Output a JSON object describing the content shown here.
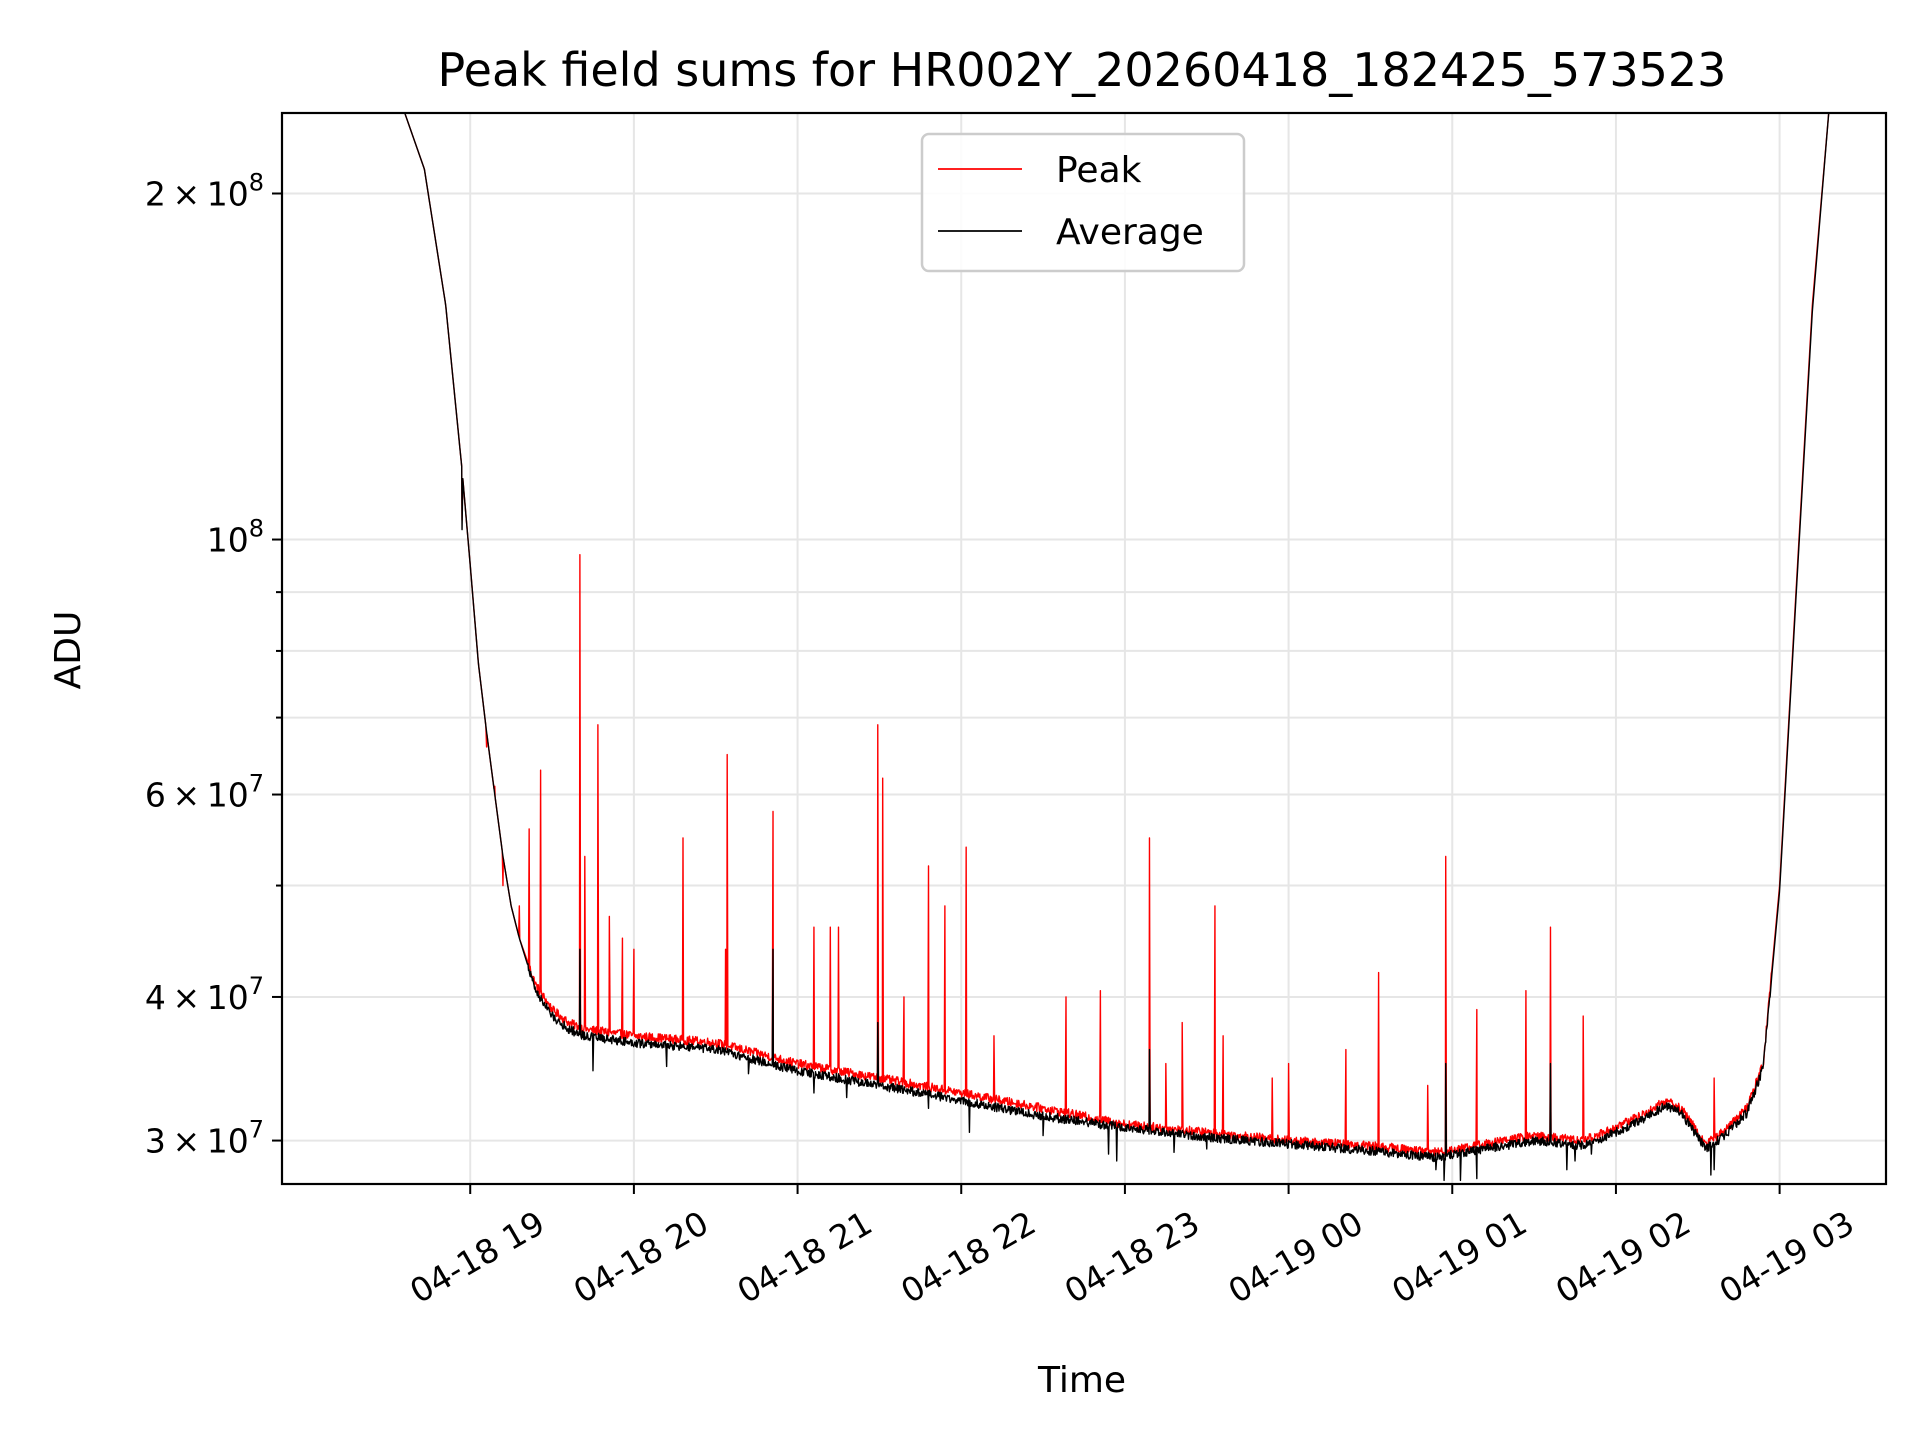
{
  "chart_data": {
    "type": "line",
    "title": "Peak field sums for HR002Y_20260418_182425_573523",
    "xlabel": "Time",
    "ylabel": "ADU",
    "yscale": "log",
    "grid": true,
    "legend_position": "top-center",
    "x_unit": "hours since 04-18 19:00",
    "xlim": [
      -1.15,
      8.65
    ],
    "ylim": [
      27500000,
      235000000
    ],
    "x_ticks": [
      {
        "value": 0,
        "label": "04-18 19"
      },
      {
        "value": 1,
        "label": "04-18 20"
      },
      {
        "value": 2,
        "label": "04-18 21"
      },
      {
        "value": 3,
        "label": "04-18 22"
      },
      {
        "value": 4,
        "label": "04-18 23"
      },
      {
        "value": 5,
        "label": "04-19 00"
      },
      {
        "value": 6,
        "label": "04-19 01"
      },
      {
        "value": 7,
        "label": "04-19 02"
      },
      {
        "value": 8,
        "label": "04-19 03"
      }
    ],
    "y_ticks": [
      {
        "value": 30000000,
        "mantissa": "3",
        "exponent": "7"
      },
      {
        "value": 40000000,
        "mantissa": "4",
        "exponent": "7"
      },
      {
        "value": 60000000,
        "mantissa": "6",
        "exponent": "7"
      },
      {
        "value": 100000000,
        "mantissa": "",
        "exponent": "8"
      },
      {
        "value": 200000000,
        "mantissa": "2",
        "exponent": "8"
      }
    ],
    "y_minor_ticks": [
      50000000,
      70000000,
      80000000,
      90000000
    ],
    "series": [
      {
        "name": "Peak",
        "color": "#ff0000",
        "baseline": [
          [
            -0.4,
            235000000
          ],
          [
            -0.28,
            210000000
          ],
          [
            -0.15,
            160000000
          ],
          [
            -0.05,
            115000000
          ],
          [
            0.0,
            95000000
          ],
          [
            0.05,
            78000000
          ],
          [
            0.1,
            68000000
          ],
          [
            0.15,
            60000000
          ],
          [
            0.2,
            53000000
          ],
          [
            0.25,
            48000000
          ],
          [
            0.3,
            45000000
          ],
          [
            0.4,
            41000000
          ],
          [
            0.5,
            39000000
          ],
          [
            0.6,
            38000000
          ],
          [
            0.7,
            37500000
          ],
          [
            1.0,
            37000000
          ],
          [
            1.5,
            36500000
          ],
          [
            2.0,
            35000000
          ],
          [
            2.5,
            34000000
          ],
          [
            3.0,
            33000000
          ],
          [
            3.5,
            32000000
          ],
          [
            4.0,
            31000000
          ],
          [
            4.5,
            30500000
          ],
          [
            5.0,
            30000000
          ],
          [
            5.5,
            29700000
          ],
          [
            5.9,
            29300000
          ],
          [
            6.2,
            29800000
          ],
          [
            6.5,
            30300000
          ],
          [
            6.8,
            30000000
          ],
          [
            7.0,
            30800000
          ],
          [
            7.2,
            31800000
          ],
          [
            7.3,
            32500000
          ],
          [
            7.4,
            32000000
          ],
          [
            7.5,
            30500000
          ],
          [
            7.55,
            29800000
          ],
          [
            7.65,
            30500000
          ],
          [
            7.8,
            32000000
          ],
          [
            7.9,
            35000000
          ],
          [
            8.0,
            50000000
          ],
          [
            8.1,
            90000000
          ],
          [
            8.2,
            160000000
          ],
          [
            8.3,
            235000000
          ]
        ],
        "spikes": [
          [
            -0.05,
            104000000
          ],
          [
            0.1,
            66000000
          ],
          [
            0.15,
            61000000
          ],
          [
            0.2,
            50000000
          ],
          [
            0.3,
            48000000
          ],
          [
            0.36,
            56000000
          ],
          [
            0.43,
            63000000
          ],
          [
            0.67,
            97000000
          ],
          [
            0.7,
            53000000
          ],
          [
            0.78,
            69000000
          ],
          [
            0.85,
            47000000
          ],
          [
            0.93,
            45000000
          ],
          [
            1.0,
            44000000
          ],
          [
            1.3,
            55000000
          ],
          [
            1.56,
            44000000
          ],
          [
            1.57,
            65000000
          ],
          [
            1.85,
            58000000
          ],
          [
            2.1,
            46000000
          ],
          [
            2.2,
            46000000
          ],
          [
            2.25,
            46000000
          ],
          [
            2.49,
            69000000
          ],
          [
            2.52,
            62000000
          ],
          [
            2.65,
            40000000
          ],
          [
            2.8,
            52000000
          ],
          [
            2.9,
            48000000
          ],
          [
            3.03,
            54000000
          ],
          [
            3.2,
            37000000
          ],
          [
            3.64,
            40000000
          ],
          [
            3.85,
            40500000
          ],
          [
            4.15,
            55000000
          ],
          [
            4.25,
            35000000
          ],
          [
            4.35,
            38000000
          ],
          [
            4.55,
            48000000
          ],
          [
            4.6,
            37000000
          ],
          [
            4.9,
            34000000
          ],
          [
            5.0,
            35000000
          ],
          [
            5.35,
            36000000
          ],
          [
            5.55,
            42000000
          ],
          [
            5.85,
            33500000
          ],
          [
            5.96,
            53000000
          ],
          [
            6.15,
            39000000
          ],
          [
            6.45,
            40500000
          ],
          [
            6.6,
            46000000
          ],
          [
            6.8,
            38500000
          ],
          [
            7.6,
            34000000
          ]
        ],
        "dips": []
      },
      {
        "name": "Average",
        "color": "#000000",
        "baseline": [
          [
            -0.4,
            235000000
          ],
          [
            -0.28,
            210000000
          ],
          [
            -0.15,
            160000000
          ],
          [
            -0.05,
            115000000
          ],
          [
            0.0,
            95000000
          ],
          [
            0.05,
            78000000
          ],
          [
            0.1,
            68000000
          ],
          [
            0.15,
            60000000
          ],
          [
            0.2,
            53000000
          ],
          [
            0.25,
            48000000
          ],
          [
            0.3,
            45000000
          ],
          [
            0.4,
            40500000
          ],
          [
            0.5,
            38500000
          ],
          [
            0.6,
            37500000
          ],
          [
            0.7,
            37000000
          ],
          [
            1.0,
            36500000
          ],
          [
            1.5,
            36000000
          ],
          [
            2.0,
            34500000
          ],
          [
            2.5,
            33500000
          ],
          [
            3.0,
            32500000
          ],
          [
            3.5,
            31500000
          ],
          [
            4.0,
            30800000
          ],
          [
            4.5,
            30200000
          ],
          [
            5.0,
            29800000
          ],
          [
            5.5,
            29400000
          ],
          [
            5.9,
            29000000
          ],
          [
            6.2,
            29500000
          ],
          [
            6.5,
            30000000
          ],
          [
            6.8,
            29700000
          ],
          [
            7.0,
            30500000
          ],
          [
            7.2,
            31500000
          ],
          [
            7.3,
            32200000
          ],
          [
            7.4,
            31700000
          ],
          [
            7.5,
            30200000
          ],
          [
            7.55,
            29500000
          ],
          [
            7.65,
            30200000
          ],
          [
            7.8,
            31700000
          ],
          [
            7.9,
            34700000
          ],
          [
            8.0,
            49500000
          ],
          [
            8.1,
            89000000
          ],
          [
            8.2,
            158000000
          ],
          [
            8.3,
            235000000
          ]
        ],
        "spikes": [
          [
            -0.05,
            102000000
          ],
          [
            0.67,
            44000000
          ],
          [
            1.85,
            44000000
          ],
          [
            2.49,
            38000000
          ],
          [
            4.15,
            36000000
          ],
          [
            5.96,
            35000000
          ],
          [
            6.6,
            35000000
          ]
        ],
        "dips": [
          [
            0.75,
            34500000
          ],
          [
            1.2,
            34800000
          ],
          [
            1.7,
            34300000
          ],
          [
            2.1,
            33000000
          ],
          [
            2.3,
            32700000
          ],
          [
            2.8,
            32000000
          ],
          [
            3.05,
            30500000
          ],
          [
            3.5,
            30300000
          ],
          [
            3.9,
            29200000
          ],
          [
            3.95,
            28800000
          ],
          [
            4.3,
            29300000
          ],
          [
            4.5,
            29500000
          ],
          [
            4.7,
            29800000
          ],
          [
            5.9,
            28300000
          ],
          [
            5.95,
            27700000
          ],
          [
            6.05,
            27700000
          ],
          [
            6.15,
            27800000
          ],
          [
            6.7,
            28300000
          ],
          [
            6.75,
            28800000
          ],
          [
            6.85,
            29200000
          ],
          [
            7.58,
            28000000
          ],
          [
            7.6,
            28300000
          ]
        ]
      }
    ]
  }
}
